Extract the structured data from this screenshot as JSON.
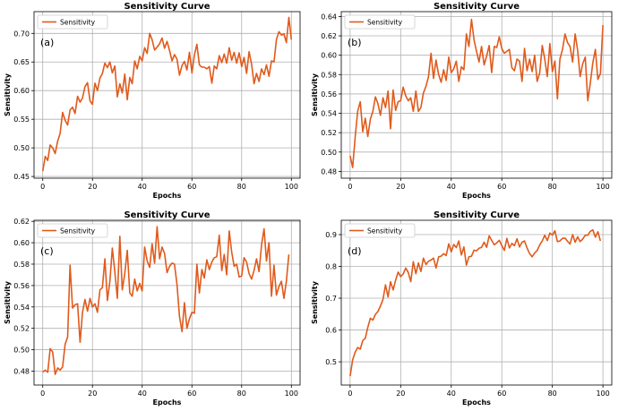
{
  "colors": {
    "series": "#e05a1c",
    "grid": "#b0b0b0"
  },
  "chart_data": [
    {
      "type": "line",
      "title": "Sensitivity Curve",
      "panel_label": "(a)",
      "xlabel": "Epochs",
      "ylabel": "Sensitivity",
      "xlim": [
        -3.5,
        103.5
      ],
      "ylim": [
        0.447,
        0.738
      ],
      "xticks": [
        0,
        20,
        40,
        60,
        80,
        100
      ],
      "yticks": [
        0.45,
        0.5,
        0.55,
        0.6,
        0.65,
        0.7
      ],
      "ytick_labels": [
        "0.45",
        "0.50",
        "0.55",
        "0.60",
        "0.65",
        "0.70"
      ],
      "grid": true,
      "legend_position": "upper-left",
      "series": [
        {
          "name": "Sensitivity",
          "x": [
            0,
            1,
            2,
            3,
            4,
            5,
            6,
            7,
            8,
            9,
            10,
            11,
            12,
            13,
            14,
            15,
            16,
            17,
            18,
            19,
            20,
            21,
            22,
            23,
            24,
            25,
            26,
            27,
            28,
            29,
            30,
            31,
            32,
            33,
            34,
            35,
            36,
            37,
            38,
            39,
            40,
            41,
            42,
            43,
            44,
            45,
            46,
            47,
            48,
            49,
            50,
            51,
            52,
            53,
            54,
            55,
            56,
            57,
            58,
            59,
            60,
            61,
            62,
            63,
            64,
            65,
            66,
            67,
            68,
            69,
            70,
            71,
            72,
            73,
            74,
            75,
            76,
            77,
            78,
            79,
            80,
            81,
            82,
            83,
            84,
            85,
            86,
            87,
            88,
            89,
            90,
            91,
            92,
            93,
            94,
            95,
            96,
            97,
            98,
            99,
            100
          ],
          "values": [
            0.459,
            0.485,
            0.478,
            0.505,
            0.5,
            0.49,
            0.512,
            0.525,
            0.562,
            0.548,
            0.54,
            0.566,
            0.571,
            0.56,
            0.59,
            0.58,
            0.587,
            0.607,
            0.614,
            0.582,
            0.576,
            0.613,
            0.6,
            0.622,
            0.63,
            0.648,
            0.64,
            0.65,
            0.631,
            0.643,
            0.589,
            0.612,
            0.596,
            0.629,
            0.584,
            0.623,
            0.612,
            0.652,
            0.638,
            0.66,
            0.652,
            0.675,
            0.665,
            0.7,
            0.689,
            0.671,
            0.676,
            0.682,
            0.692,
            0.674,
            0.686,
            0.67,
            0.652,
            0.663,
            0.655,
            0.627,
            0.644,
            0.651,
            0.636,
            0.667,
            0.631,
            0.662,
            0.681,
            0.645,
            0.641,
            0.641,
            0.638,
            0.642,
            0.613,
            0.643,
            0.638,
            0.661,
            0.649,
            0.664,
            0.648,
            0.675,
            0.653,
            0.667,
            0.648,
            0.666,
            0.642,
            0.658,
            0.63,
            0.668,
            0.646,
            0.612,
            0.63,
            0.616,
            0.638,
            0.628,
            0.645,
            0.625,
            0.652,
            0.65,
            0.689,
            0.703,
            0.697,
            0.699,
            0.684,
            0.728,
            0.689
          ]
        }
      ]
    },
    {
      "type": "line",
      "title": "Sensitivity Curve",
      "panel_label": "(b)",
      "xlabel": "Epochs",
      "ylabel": "Sensitivity",
      "xlim": [
        -3.5,
        103.5
      ],
      "ylim": [
        0.473,
        0.645
      ],
      "xticks": [
        0,
        20,
        40,
        60,
        80,
        100
      ],
      "yticks": [
        0.48,
        0.5,
        0.52,
        0.54,
        0.56,
        0.58,
        0.6,
        0.62,
        0.64
      ],
      "ytick_labels": [
        "0.48",
        "0.50",
        "0.52",
        "0.54",
        "0.56",
        "0.58",
        "0.60",
        "0.62",
        "0.64"
      ],
      "grid": true,
      "legend_position": "upper-left",
      "series": [
        {
          "name": "Sensitivity",
          "x": [
            0,
            1,
            2,
            3,
            4,
            5,
            6,
            7,
            8,
            9,
            10,
            11,
            12,
            13,
            14,
            15,
            16,
            17,
            18,
            19,
            20,
            21,
            22,
            23,
            24,
            25,
            26,
            27,
            28,
            29,
            30,
            31,
            32,
            33,
            34,
            35,
            36,
            37,
            38,
            39,
            40,
            41,
            42,
            43,
            44,
            45,
            46,
            47,
            48,
            49,
            50,
            51,
            52,
            53,
            54,
            55,
            56,
            57,
            58,
            59,
            60,
            61,
            62,
            63,
            64,
            65,
            66,
            67,
            68,
            69,
            70,
            71,
            72,
            73,
            74,
            75,
            76,
            77,
            78,
            79,
            80,
            81,
            82,
            83,
            84,
            85,
            86,
            87,
            88,
            89,
            90,
            91,
            92,
            93,
            94,
            95,
            96,
            97,
            98,
            99,
            100
          ],
          "values": [
            0.496,
            0.484,
            0.515,
            0.542,
            0.552,
            0.521,
            0.535,
            0.516,
            0.534,
            0.542,
            0.557,
            0.55,
            0.538,
            0.556,
            0.546,
            0.563,
            0.524,
            0.564,
            0.543,
            0.552,
            0.553,
            0.567,
            0.558,
            0.553,
            0.556,
            0.542,
            0.563,
            0.542,
            0.546,
            0.561,
            0.568,
            0.578,
            0.602,
            0.576,
            0.595,
            0.58,
            0.572,
            0.585,
            0.574,
            0.598,
            0.582,
            0.586,
            0.594,
            0.573,
            0.588,
            0.585,
            0.622,
            0.609,
            0.637,
            0.616,
            0.604,
            0.593,
            0.609,
            0.59,
            0.599,
            0.61,
            0.582,
            0.609,
            0.608,
            0.619,
            0.607,
            0.602,
            0.604,
            0.606,
            0.587,
            0.584,
            0.596,
            0.594,
            0.573,
            0.607,
            0.584,
            0.596,
            0.583,
            0.6,
            0.573,
            0.582,
            0.61,
            0.596,
            0.578,
            0.612,
            0.583,
            0.594,
            0.555,
            0.596,
            0.606,
            0.622,
            0.613,
            0.609,
            0.593,
            0.622,
            0.605,
            0.578,
            0.591,
            0.598,
            0.553,
            0.571,
            0.592,
            0.606,
            0.575,
            0.581,
            0.631
          ]
        }
      ]
    },
    {
      "type": "line",
      "title": "Sensitivity Curve",
      "panel_label": "(c)",
      "xlabel": "Epochs",
      "ylabel": "Sensitivity",
      "xlim": [
        -3.5,
        103.5
      ],
      "ylim": [
        0.467,
        0.621
      ],
      "xticks": [
        0,
        20,
        40,
        60,
        80,
        100
      ],
      "yticks": [
        0.48,
        0.5,
        0.52,
        0.54,
        0.56,
        0.58,
        0.6,
        0.62
      ],
      "ytick_labels": [
        "0.48",
        "0.50",
        "0.52",
        "0.54",
        "0.56",
        "0.58",
        "0.60",
        "0.62"
      ],
      "grid": true,
      "legend_position": "upper-left",
      "series": [
        {
          "name": "Sensitivity",
          "x": [
            0,
            1,
            2,
            3,
            4,
            5,
            6,
            7,
            8,
            9,
            10,
            11,
            12,
            13,
            14,
            15,
            16,
            17,
            18,
            19,
            20,
            21,
            22,
            23,
            24,
            25,
            26,
            27,
            28,
            29,
            30,
            31,
            32,
            33,
            34,
            35,
            36,
            37,
            38,
            39,
            40,
            41,
            42,
            43,
            44,
            45,
            46,
            47,
            48,
            49,
            50,
            51,
            52,
            53,
            54,
            55,
            56,
            57,
            58,
            59,
            60,
            61,
            62,
            63,
            64,
            65,
            66,
            67,
            68,
            69,
            70,
            71,
            72,
            73,
            74,
            75,
            76,
            77,
            78,
            79,
            80,
            81,
            82,
            83,
            84,
            85,
            86,
            87,
            88,
            89,
            90,
            91,
            92,
            93,
            94,
            95,
            96,
            97,
            98,
            99
          ],
          "values": [
            0.479,
            0.481,
            0.479,
            0.501,
            0.498,
            0.477,
            0.483,
            0.481,
            0.484,
            0.505,
            0.512,
            0.579,
            0.539,
            0.542,
            0.543,
            0.507,
            0.535,
            0.547,
            0.536,
            0.548,
            0.54,
            0.543,
            0.535,
            0.556,
            0.558,
            0.585,
            0.546,
            0.564,
            0.595,
            0.573,
            0.548,
            0.606,
            0.556,
            0.571,
            0.593,
            0.553,
            0.55,
            0.566,
            0.555,
            0.562,
            0.555,
            0.596,
            0.583,
            0.577,
            0.599,
            0.581,
            0.615,
            0.585,
            0.596,
            0.59,
            0.572,
            0.578,
            0.581,
            0.58,
            0.561,
            0.531,
            0.517,
            0.544,
            0.52,
            0.529,
            0.535,
            0.534,
            0.58,
            0.553,
            0.575,
            0.567,
            0.584,
            0.575,
            0.582,
            0.586,
            0.587,
            0.607,
            0.574,
            0.589,
            0.57,
            0.611,
            0.591,
            0.578,
            0.58,
            0.568,
            0.569,
            0.586,
            0.582,
            0.571,
            0.566,
            0.574,
            0.585,
            0.573,
            0.598,
            0.613,
            0.583,
            0.6,
            0.55,
            0.579,
            0.551,
            0.559,
            0.564,
            0.548,
            0.564,
            0.589
          ]
        }
      ]
    },
    {
      "type": "line",
      "title": "Sensitivity Curve",
      "panel_label": "(d)",
      "xlabel": "Epochs",
      "ylabel": "Sensitivity",
      "xlim": [
        -3.5,
        103.5
      ],
      "ylim": [
        0.427,
        0.945
      ],
      "xticks": [
        0,
        20,
        40,
        60,
        80,
        100
      ],
      "yticks": [
        0.5,
        0.6,
        0.7,
        0.8,
        0.9
      ],
      "ytick_labels": [
        "0.5",
        "0.6",
        "0.7",
        "0.8",
        "0.9"
      ],
      "grid": true,
      "legend_position": "upper-left",
      "series": [
        {
          "name": "Sensitivity",
          "x": [
            0,
            1,
            2,
            3,
            4,
            5,
            6,
            7,
            8,
            9,
            10,
            11,
            12,
            13,
            14,
            15,
            16,
            17,
            18,
            19,
            20,
            21,
            22,
            23,
            24,
            25,
            26,
            27,
            28,
            29,
            30,
            31,
            32,
            33,
            34,
            35,
            36,
            37,
            38,
            39,
            40,
            41,
            42,
            43,
            44,
            45,
            46,
            47,
            48,
            49,
            50,
            51,
            52,
            53,
            54,
            55,
            56,
            57,
            58,
            59,
            60,
            61,
            62,
            63,
            64,
            65,
            66,
            67,
            68,
            69,
            70,
            71,
            72,
            73,
            74,
            75,
            76,
            77,
            78,
            79,
            80,
            81,
            82,
            83,
            84,
            85,
            86,
            87,
            88,
            89,
            90,
            91,
            92,
            93,
            94,
            95,
            96,
            97,
            98,
            99
          ],
          "values": [
            0.455,
            0.506,
            0.53,
            0.545,
            0.54,
            0.567,
            0.574,
            0.608,
            0.637,
            0.631,
            0.649,
            0.658,
            0.675,
            0.696,
            0.742,
            0.704,
            0.752,
            0.726,
            0.757,
            0.782,
            0.768,
            0.776,
            0.795,
            0.781,
            0.752,
            0.815,
            0.777,
            0.811,
            0.784,
            0.826,
            0.806,
            0.816,
            0.82,
            0.826,
            0.795,
            0.83,
            0.832,
            0.84,
            0.834,
            0.871,
            0.846,
            0.869,
            0.859,
            0.88,
            0.836,
            0.861,
            0.804,
            0.83,
            0.832,
            0.851,
            0.849,
            0.857,
            0.86,
            0.876,
            0.86,
            0.896,
            0.882,
            0.868,
            0.874,
            0.882,
            0.866,
            0.85,
            0.888,
            0.858,
            0.872,
            0.865,
            0.887,
            0.861,
            0.876,
            0.88,
            0.858,
            0.84,
            0.83,
            0.842,
            0.85,
            0.868,
            0.88,
            0.898,
            0.881,
            0.905,
            0.898,
            0.912,
            0.878,
            0.88,
            0.888,
            0.889,
            0.879,
            0.87,
            0.9,
            0.876,
            0.893,
            0.878,
            0.886,
            0.898,
            0.898,
            0.91,
            0.915,
            0.892,
            0.909,
            0.88
          ]
        }
      ]
    }
  ]
}
